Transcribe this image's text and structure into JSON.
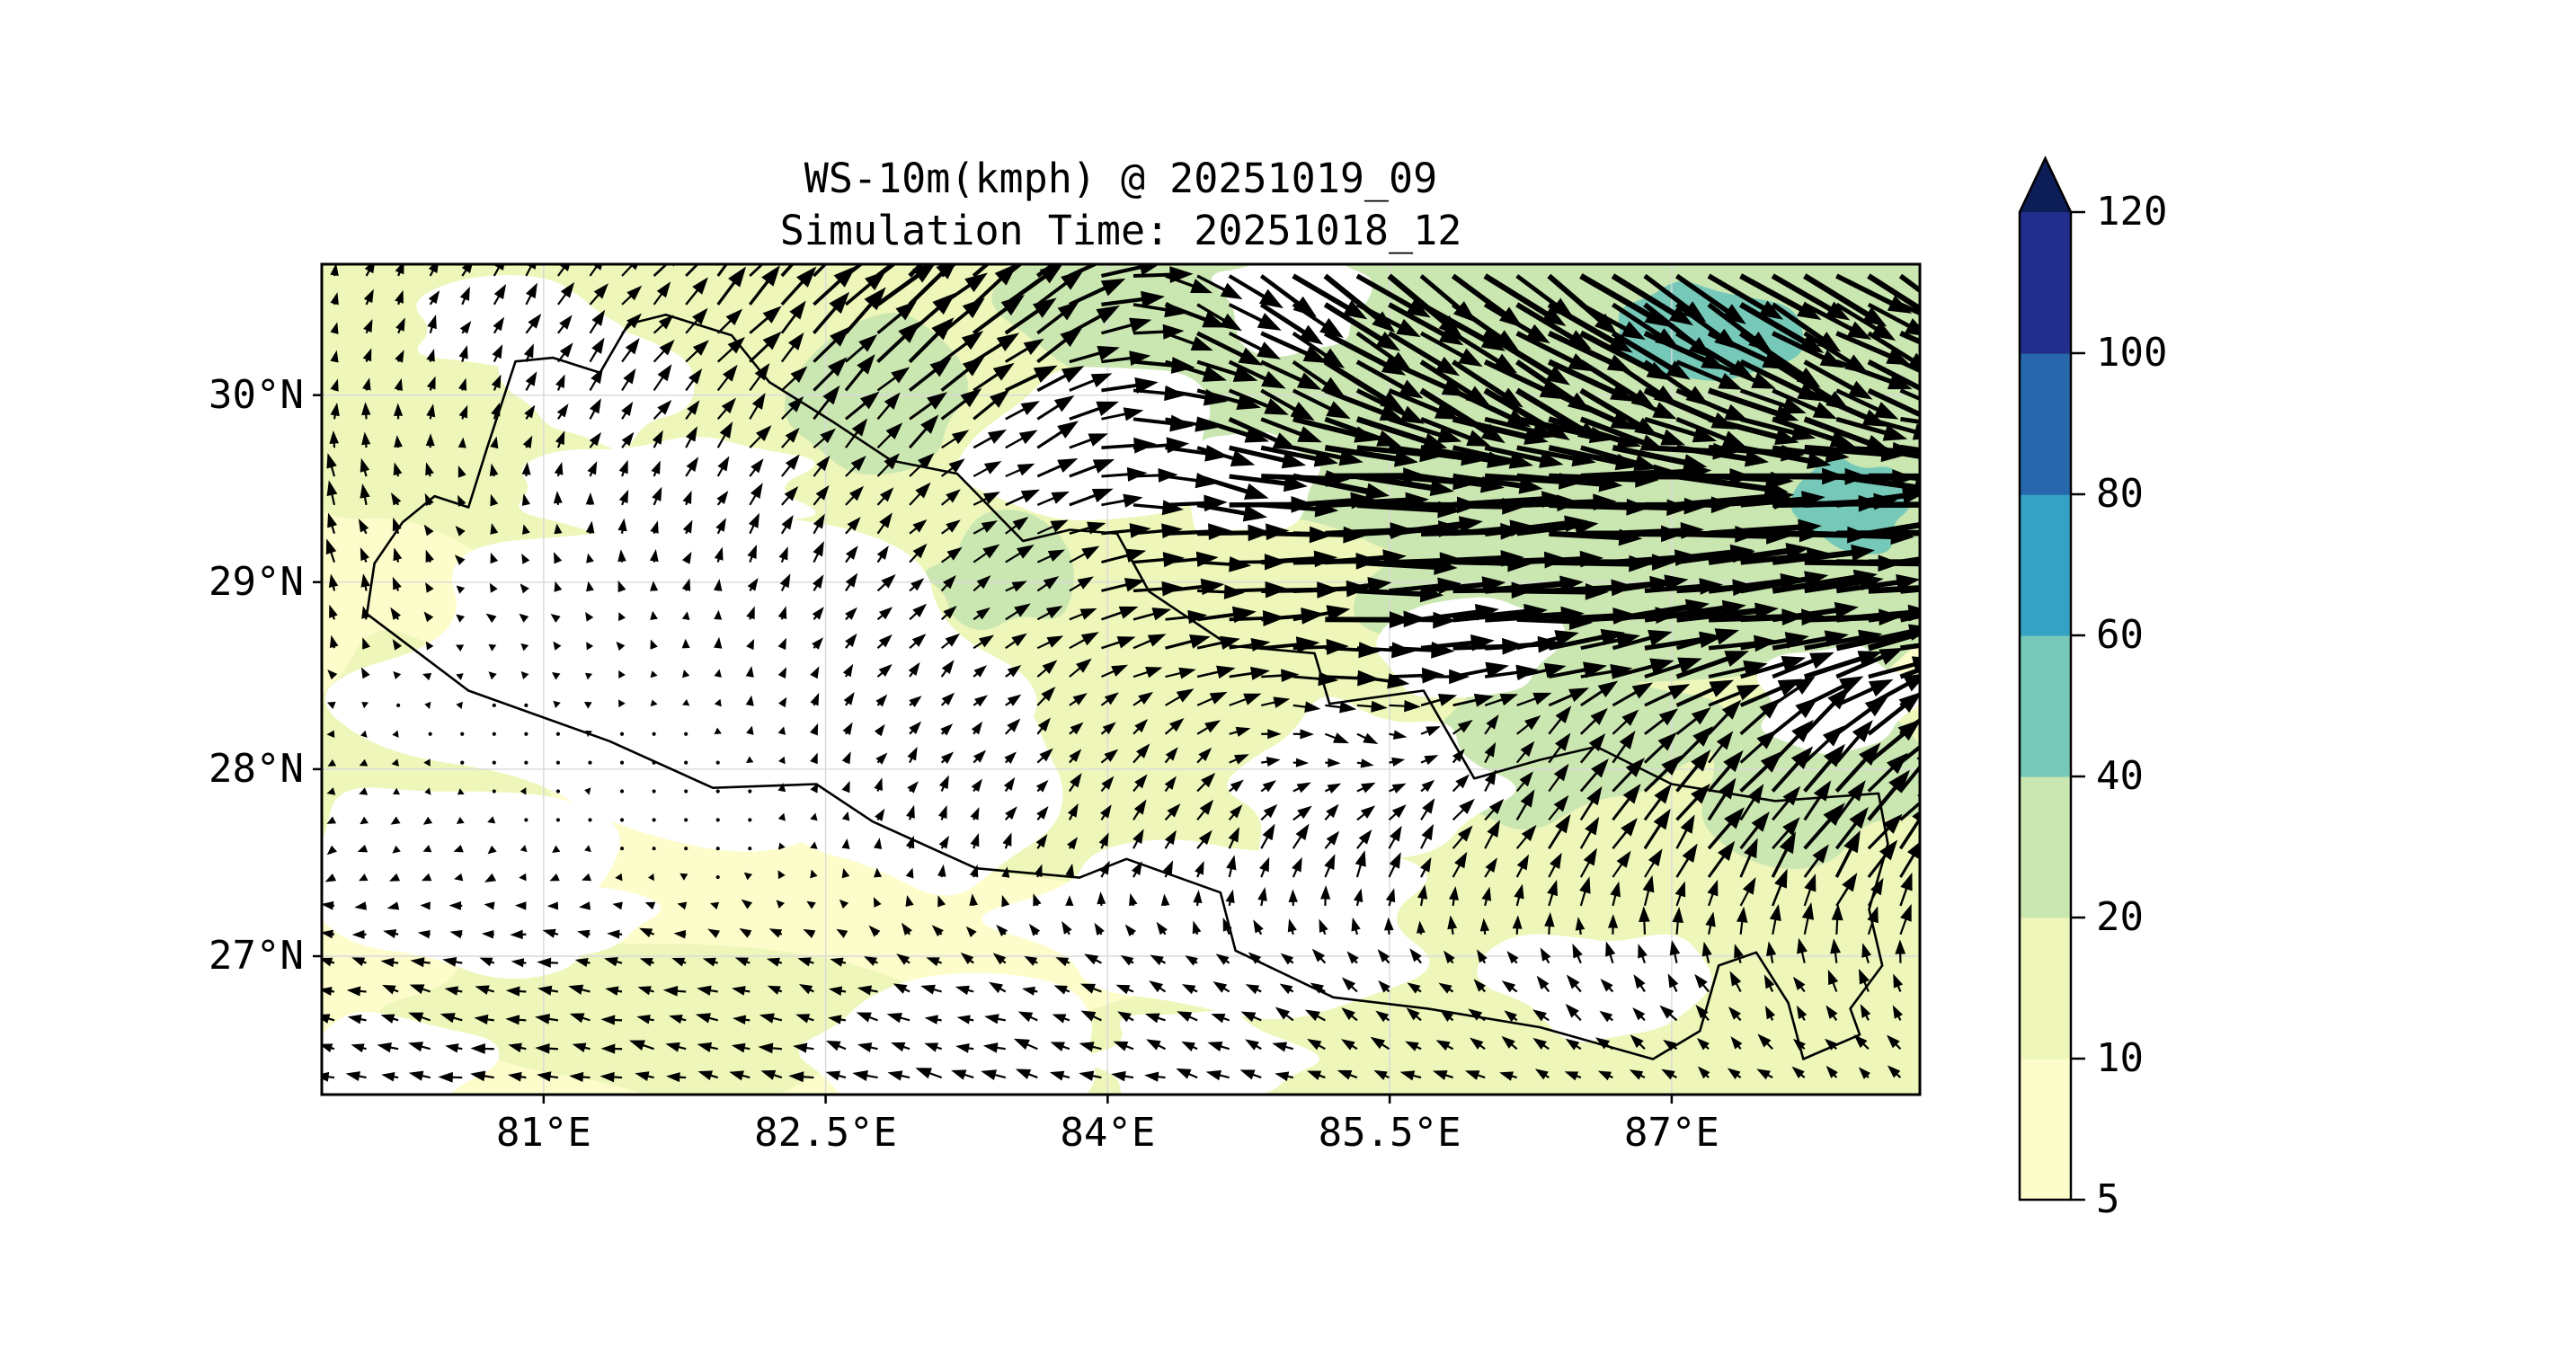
{
  "title": {
    "line1": "WS-10m(kmph) @ 20251019_09",
    "line2": "Simulation Time: 20251018_12"
  },
  "chart_data": {
    "type": "quiver-map",
    "title": "WS-10m(kmph) @ 20251019_09",
    "subtitle": "Simulation Time: 20251018_12",
    "variable": "10 m wind speed (kmph) shading with wind vectors",
    "valid_time": "20251019_09",
    "simulation_time": "20251018_12",
    "lon_range": [
      79.82,
      88.32
    ],
    "lat_range": [
      26.26,
      30.7
    ],
    "grid_on": true,
    "x_ticks": [
      {
        "lon": 81.0,
        "label": "81°E"
      },
      {
        "lon": 82.5,
        "label": "82.5°E"
      },
      {
        "lon": 84.0,
        "label": "84°E"
      },
      {
        "lon": 85.5,
        "label": "85.5°E"
      },
      {
        "lon": 87.0,
        "label": "87°E"
      }
    ],
    "y_ticks": [
      {
        "lat": 30.0,
        "label": "30°N"
      },
      {
        "lat": 29.0,
        "label": "29°N"
      },
      {
        "lat": 28.0,
        "label": "28°N"
      },
      {
        "lat": 27.0,
        "label": "27°N"
      }
    ],
    "colorbar": {
      "orientation": "vertical",
      "extend": "max",
      "levels": [
        5,
        10,
        20,
        40,
        60,
        80,
        100,
        120
      ],
      "tick_labels_top_to_bottom": [
        "120",
        "100",
        "80",
        "60",
        "40",
        "20",
        "10",
        "5"
      ],
      "band_colors_low_to_high": [
        "#fdfdcb",
        "#eff6ba",
        "#cbe7b1",
        "#76c9b8",
        "#35a2c4",
        "#2767ac",
        "#232e8c"
      ],
      "over_color": "#0d1d58"
    },
    "map_colors": {
      "calm_below_5": "#ffffff",
      "border": "#000000",
      "gridline": "#d9d9d9",
      "arrow": "#000000",
      "frame": "#000000"
    },
    "wind_field_grid": {
      "cols": 12,
      "rows": 8,
      "lon_of_cols": [
        79.82,
        80.59,
        81.36,
        82.14,
        82.91,
        83.68,
        84.45,
        85.23,
        86.0,
        86.77,
        87.55,
        88.32
      ],
      "lat_of_rows": [
        30.7,
        30.07,
        29.43,
        28.8,
        28.16,
        27.53,
        26.89,
        26.26
      ],
      "u_kmph": [
        [
          2,
          4,
          8,
          15,
          22,
          24,
          22,
          26,
          29,
          30,
          30,
          29
        ],
        [
          1,
          3,
          6,
          10,
          16,
          18,
          24,
          30,
          31,
          31,
          30,
          29
        ],
        [
          -3,
          -2,
          2,
          5,
          8,
          14,
          28,
          40,
          42,
          42,
          42,
          41
        ],
        [
          -2,
          -3,
          -2,
          2,
          6,
          10,
          22,
          32,
          35,
          36,
          38,
          40
        ],
        [
          -3,
          -2,
          -2,
          1,
          4,
          6,
          8,
          8,
          6,
          13,
          16,
          21
        ],
        [
          -3,
          -3,
          -2,
          -1,
          2,
          3,
          5,
          6,
          7,
          10,
          12,
          15
        ],
        [
          -7,
          -8,
          -8,
          -7,
          -7,
          -7,
          -7,
          -6,
          -5,
          -5,
          -4,
          -3
        ],
        [
          -8,
          -9,
          -10,
          -10,
          -10,
          -10,
          -9,
          -8,
          -8,
          -7,
          -6,
          -5
        ]
      ],
      "v_kmph": [
        [
          6,
          7,
          10,
          15,
          20,
          16,
          -12,
          -19,
          -21,
          -21,
          -20,
          -18
        ],
        [
          5,
          6,
          8,
          12,
          14,
          10,
          -10,
          -16,
          -17,
          -16,
          -14,
          -13
        ],
        [
          10,
          4,
          6,
          8,
          8,
          7,
          -4,
          0,
          2,
          2,
          2,
          2
        ],
        [
          8,
          2,
          3,
          5,
          6,
          6,
          2,
          2,
          2,
          3,
          4,
          5
        ],
        [
          -1,
          0,
          1,
          3,
          5,
          6,
          6,
          -5,
          8,
          13,
          15,
          17
        ],
        [
          -2,
          -2,
          -1,
          2,
          5,
          6,
          8,
          10,
          10,
          15,
          17,
          19
        ],
        [
          2,
          2,
          2,
          2,
          3,
          3,
          4,
          5,
          5,
          7,
          8,
          9
        ],
        [
          1,
          1,
          1,
          2,
          2,
          2,
          2,
          3,
          3,
          4,
          4,
          4
        ]
      ]
    },
    "shading_patches": [
      {
        "band": "10-20",
        "lon": 82.3,
        "lat": 30.35,
        "rlon": 2.7,
        "rlat": 0.85,
        "seed": 1
      },
      {
        "band": "10-20",
        "lon": 80.5,
        "lat": 29.95,
        "rlon": 1.1,
        "rlat": 0.8,
        "seed": 2
      },
      {
        "band": "10-20",
        "lon": 83.2,
        "lat": 29.35,
        "rlon": 2.4,
        "rlat": 0.85,
        "seed": 3
      },
      {
        "band": "10-20",
        "lon": 85.1,
        "lat": 28.35,
        "rlon": 1.7,
        "rlat": 1.05,
        "seed": 4
      },
      {
        "band": "10-20",
        "lon": 86.6,
        "lat": 27.35,
        "rlon": 2.1,
        "rlat": 1.25,
        "seed": 5
      },
      {
        "band": "10-20",
        "lon": 87.9,
        "lat": 26.75,
        "rlon": 1.1,
        "rlat": 0.75,
        "seed": 6
      },
      {
        "band": "10-20",
        "lon": 84.3,
        "lat": 28.0,
        "rlon": 1.5,
        "rlat": 0.9,
        "seed": 7
      },
      {
        "band": "10-20",
        "lon": 85.8,
        "lat": 26.55,
        "rlon": 1.9,
        "rlat": 0.5,
        "seed": 8
      },
      {
        "band": "10-20",
        "lon": 83.0,
        "lat": 28.6,
        "rlon": 1.3,
        "rlat": 0.6,
        "seed": 9
      },
      {
        "band": "10-20",
        "lon": 80.3,
        "lat": 28.0,
        "rlon": 0.9,
        "rlat": 0.8,
        "seed": 10
      },
      {
        "band": "10-20",
        "lon": 84.9,
        "lat": 29.8,
        "rlon": 1.2,
        "rlat": 0.7,
        "seed": 33
      },
      {
        "band": "10-20",
        "lon": 81.6,
        "lat": 26.7,
        "rlon": 1.5,
        "rlat": 0.5,
        "seed": 38
      },
      {
        "band": "20-40",
        "lon": 87.0,
        "lat": 30.25,
        "rlon": 2.9,
        "rlat": 1.0,
        "seed": 11
      },
      {
        "band": "20-40",
        "lon": 87.6,
        "lat": 29.35,
        "rlon": 1.35,
        "rlat": 0.8,
        "seed": 12
      },
      {
        "band": "20-40",
        "lon": 85.35,
        "lat": 29.95,
        "rlon": 1.15,
        "rlat": 0.75,
        "seed": 13
      },
      {
        "band": "20-40",
        "lon": 84.5,
        "lat": 30.5,
        "rlon": 0.95,
        "rlat": 0.45,
        "seed": 34
      },
      {
        "band": "20-40",
        "lon": 86.6,
        "lat": 28.95,
        "rlon": 1.5,
        "rlat": 0.55,
        "seed": 35
      },
      {
        "band": "20-40",
        "lon": 86.45,
        "lat": 28.15,
        "rlon": 0.8,
        "rlat": 0.45,
        "seed": 14
      },
      {
        "band": "20-40",
        "lon": 87.75,
        "lat": 28.0,
        "rlon": 0.6,
        "rlat": 0.5,
        "seed": 15
      },
      {
        "band": "20-40",
        "lon": 82.75,
        "lat": 30.0,
        "rlon": 0.55,
        "rlat": 0.4,
        "seed": 16
      },
      {
        "band": "20-40",
        "lon": 83.45,
        "lat": 29.05,
        "rlon": 0.4,
        "rlat": 0.28,
        "seed": 43
      },
      {
        "band": "40-60",
        "lon": 87.15,
        "lat": 30.35,
        "rlon": 0.5,
        "rlat": 0.28,
        "seed": 18
      },
      {
        "band": "40-60",
        "lon": 87.95,
        "lat": 29.4,
        "rlon": 0.3,
        "rlat": 0.25,
        "seed": 19
      },
      {
        "band": "<5",
        "lon": 81.75,
        "lat": 28.45,
        "rlon": 1.75,
        "rlat": 0.8,
        "seed": 20
      },
      {
        "band": "<5",
        "lon": 80.55,
        "lat": 27.45,
        "rlon": 0.95,
        "rlat": 0.55,
        "seed": 21
      },
      {
        "band": "<5",
        "lon": 81.0,
        "lat": 27.15,
        "rlon": 0.65,
        "rlat": 0.22,
        "seed": 37
      },
      {
        "band": "<5",
        "lon": 82.9,
        "lat": 27.9,
        "rlon": 1.0,
        "rlat": 0.55,
        "seed": 22
      },
      {
        "band": "<5",
        "lon": 84.6,
        "lat": 27.2,
        "rlon": 1.15,
        "rlat": 0.5,
        "seed": 23
      },
      {
        "band": "<5",
        "lon": 85.35,
        "lat": 27.9,
        "rlon": 0.75,
        "rlat": 0.45,
        "seed": 24
      },
      {
        "band": "<5",
        "lon": 80.9,
        "lat": 30.35,
        "rlon": 0.6,
        "rlat": 0.28,
        "seed": 25
      },
      {
        "band": "<5",
        "lon": 81.3,
        "lat": 30.05,
        "rlon": 0.5,
        "rlat": 0.32,
        "seed": 26
      },
      {
        "band": "<5",
        "lon": 83.9,
        "lat": 29.75,
        "rlon": 0.75,
        "rlat": 0.4,
        "seed": 27
      },
      {
        "band": "<5",
        "lon": 85.0,
        "lat": 30.5,
        "rlon": 0.45,
        "rlat": 0.28,
        "seed": 32
      },
      {
        "band": "<5",
        "lon": 84.78,
        "lat": 29.5,
        "rlon": 0.4,
        "rlat": 0.28,
        "seed": 40
      },
      {
        "band": "<5",
        "lon": 85.95,
        "lat": 28.65,
        "rlon": 0.5,
        "rlat": 0.3,
        "seed": 28
      },
      {
        "band": "<5",
        "lon": 87.9,
        "lat": 28.35,
        "rlon": 0.45,
        "rlat": 0.28,
        "seed": 29
      },
      {
        "band": "<5",
        "lon": 80.15,
        "lat": 26.42,
        "rlon": 0.55,
        "rlat": 0.26,
        "seed": 30
      },
      {
        "band": "<5",
        "lon": 83.2,
        "lat": 26.5,
        "rlon": 0.8,
        "rlat": 0.35,
        "seed": 31
      },
      {
        "band": "<5",
        "lon": 81.6,
        "lat": 29.5,
        "rlon": 0.85,
        "rlat": 0.28,
        "seed": 36
      },
      {
        "band": "<5",
        "lon": 86.6,
        "lat": 26.85,
        "rlon": 0.55,
        "rlat": 0.3,
        "seed": 41
      },
      {
        "band": "<5",
        "lon": 84.5,
        "lat": 26.45,
        "rlon": 0.6,
        "rlat": 0.25,
        "seed": 42
      }
    ],
    "nepal_border_lonlat": [
      [
        80.06,
        28.83
      ],
      [
        80.1,
        29.1
      ],
      [
        80.25,
        29.32
      ],
      [
        80.42,
        29.46
      ],
      [
        80.6,
        29.4
      ],
      [
        80.7,
        29.72
      ],
      [
        80.85,
        30.18
      ],
      [
        81.05,
        30.2
      ],
      [
        81.3,
        30.12
      ],
      [
        81.45,
        30.38
      ],
      [
        81.65,
        30.43
      ],
      [
        82.0,
        30.32
      ],
      [
        82.2,
        30.07
      ],
      [
        82.55,
        29.85
      ],
      [
        82.85,
        29.65
      ],
      [
        83.2,
        29.58
      ],
      [
        83.55,
        29.22
      ],
      [
        83.8,
        29.28
      ],
      [
        84.05,
        29.26
      ],
      [
        84.22,
        28.95
      ],
      [
        84.65,
        28.66
      ],
      [
        85.1,
        28.62
      ],
      [
        85.18,
        28.35
      ],
      [
        85.68,
        28.42
      ],
      [
        85.95,
        27.95
      ],
      [
        86.3,
        28.05
      ],
      [
        86.6,
        28.12
      ],
      [
        87.0,
        27.92
      ],
      [
        87.55,
        27.83
      ],
      [
        88.1,
        27.87
      ],
      [
        88.15,
        27.6
      ],
      [
        88.05,
        27.25
      ],
      [
        88.12,
        26.95
      ],
      [
        87.95,
        26.72
      ],
      [
        88.0,
        26.58
      ],
      [
        87.7,
        26.45
      ],
      [
        87.62,
        26.75
      ],
      [
        87.45,
        27.02
      ],
      [
        87.25,
        26.95
      ],
      [
        87.15,
        26.6
      ],
      [
        86.9,
        26.45
      ],
      [
        86.3,
        26.62
      ],
      [
        85.7,
        26.72
      ],
      [
        85.2,
        26.78
      ],
      [
        84.68,
        27.03
      ],
      [
        84.6,
        27.34
      ],
      [
        84.1,
        27.52
      ],
      [
        83.85,
        27.42
      ],
      [
        83.3,
        27.47
      ],
      [
        82.75,
        27.72
      ],
      [
        82.45,
        27.92
      ],
      [
        81.9,
        27.9
      ],
      [
        81.35,
        28.15
      ],
      [
        80.6,
        28.42
      ],
      [
        80.06,
        28.83
      ]
    ]
  }
}
